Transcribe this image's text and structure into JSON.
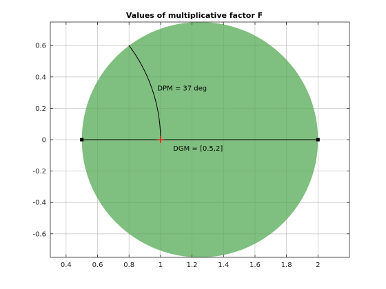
{
  "chart_data": {
    "type": "scatter",
    "title": "Values of multiplicative factor F",
    "xlabel": "",
    "ylabel": "",
    "xlim": [
      0.3,
      2.2
    ],
    "ylim": [
      -0.75,
      0.75
    ],
    "xticks": [
      0.4,
      0.6,
      0.8,
      1,
      1.2,
      1.4,
      1.6,
      1.8,
      2
    ],
    "xtick_labels": [
      "0.4",
      "0.6",
      "0.8",
      "1",
      "1.2",
      "1.4",
      "1.6",
      "1.8",
      "2"
    ],
    "yticks": [
      0.6,
      0.4,
      0.2,
      0,
      -0.2,
      -0.4,
      -0.6
    ],
    "ytick_labels": [
      "0.6",
      "0.4",
      "0.2",
      "0",
      "-0.2",
      "-0.4",
      "-0.6"
    ],
    "grid": true,
    "disk": {
      "center": [
        1.25,
        0
      ],
      "radius": 0.75,
      "color": "#7fbf7f"
    },
    "dgm_segment": {
      "x": [
        0.5,
        2
      ],
      "y": [
        0,
        0
      ],
      "color": "#000000"
    },
    "dpm_arc": {
      "center": [
        0,
        0
      ],
      "radius": 1,
      "start_deg": 0,
      "end_deg": 37,
      "color": "#000000"
    },
    "nominal_point": {
      "x": 1,
      "y": 0,
      "color": "#ff0000",
      "marker": "+"
    },
    "annotations": [
      {
        "text": "DPM = 37 deg",
        "x": 0.98,
        "y": 0.33
      },
      {
        "text": "DGM = [0.5,2]",
        "x": 1.08,
        "y": -0.055
      }
    ]
  },
  "colors": {
    "axis": "#262626",
    "grid": "#dcdcdc"
  }
}
